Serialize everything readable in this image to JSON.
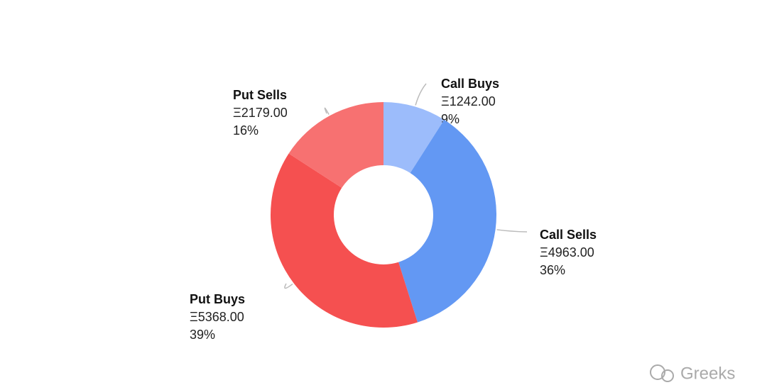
{
  "chart_data": {
    "type": "pie",
    "donut": true,
    "categories": [
      "Call Buys",
      "Call Sells",
      "Put Buys",
      "Put Sells"
    ],
    "values": [
      1242.0,
      4963.0,
      5368.0,
      2179.0
    ],
    "value_labels": [
      "Ξ1242.00",
      "Ξ4963.00",
      "Ξ5368.00",
      "Ξ2179.00"
    ],
    "percent_labels": [
      "9%",
      "36%",
      "39%",
      "16%"
    ],
    "colors": [
      "#9cbcfb",
      "#6398f3",
      "#f55050",
      "#f77171"
    ]
  },
  "watermark": "Greeks"
}
